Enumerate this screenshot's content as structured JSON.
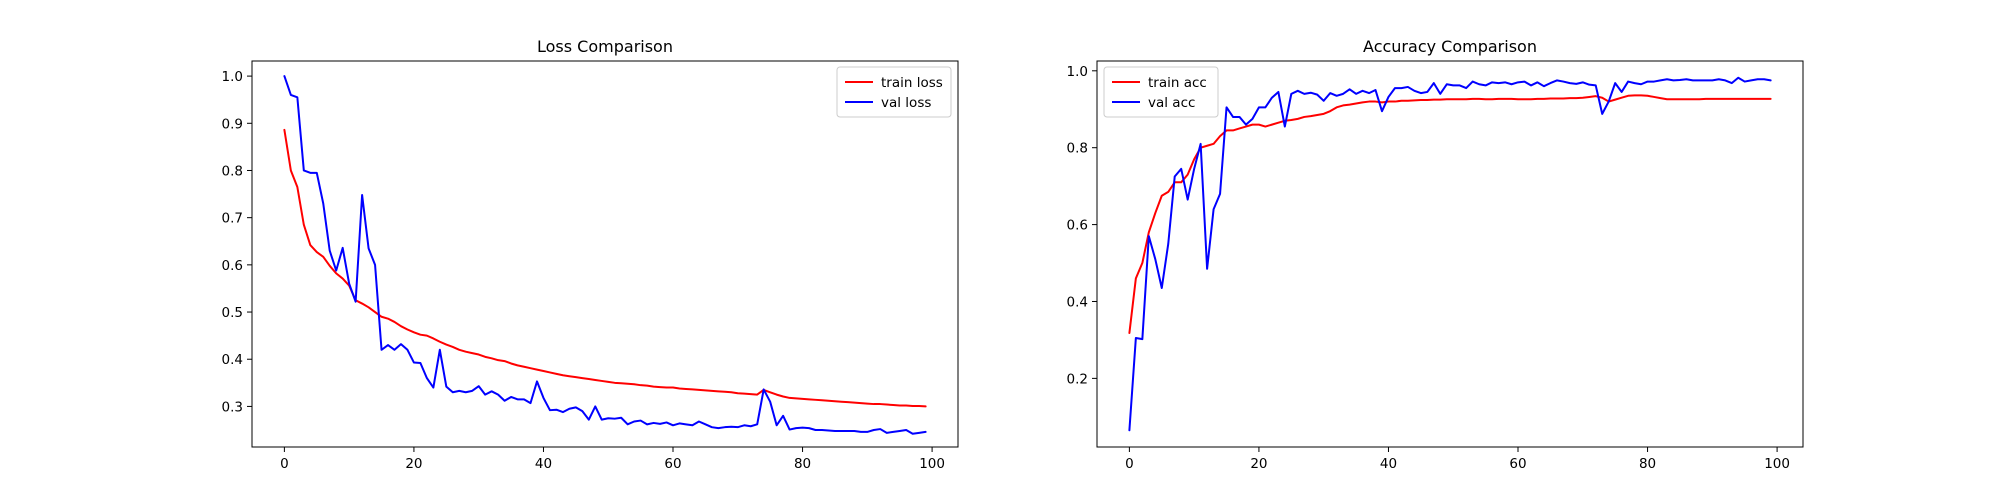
{
  "chart_data": [
    {
      "type": "line",
      "title": "Loss Comparison",
      "xlabel": "",
      "ylabel": "",
      "xlim": [
        -5,
        104
      ],
      "ylim": [
        0.214,
        1.032
      ],
      "xticks": [
        0,
        20,
        40,
        60,
        80,
        100
      ],
      "yticks": [
        0.3,
        0.4,
        0.5,
        0.6,
        0.7,
        0.8,
        0.9,
        1.0
      ],
      "ytick_labels": [
        "0.3",
        "0.4",
        "0.5",
        "0.6",
        "0.7",
        "0.8",
        "0.9",
        "1.0"
      ],
      "legend_position": "upper right",
      "grid": false,
      "x": [
        0,
        1,
        2,
        3,
        4,
        5,
        6,
        7,
        8,
        9,
        10,
        11,
        12,
        13,
        14,
        15,
        16,
        17,
        18,
        19,
        20,
        21,
        22,
        23,
        24,
        25,
        26,
        27,
        28,
        29,
        30,
        31,
        32,
        33,
        34,
        35,
        36,
        37,
        38,
        39,
        40,
        41,
        42,
        43,
        44,
        45,
        46,
        47,
        48,
        49,
        50,
        51,
        52,
        53,
        54,
        55,
        56,
        57,
        58,
        59,
        60,
        61,
        62,
        63,
        64,
        65,
        66,
        67,
        68,
        69,
        70,
        71,
        72,
        73,
        74,
        75,
        76,
        77,
        78,
        79,
        80,
        81,
        82,
        83,
        84,
        85,
        86,
        87,
        88,
        89,
        90,
        91,
        92,
        93,
        94,
        95,
        96,
        97,
        98,
        99
      ],
      "series": [
        {
          "name": "train loss",
          "color": "#ff0000",
          "values": [
            0.886,
            0.8,
            0.765,
            0.685,
            0.642,
            0.627,
            0.617,
            0.598,
            0.582,
            0.571,
            0.556,
            0.525,
            0.518,
            0.51,
            0.5,
            0.49,
            0.486,
            0.479,
            0.47,
            0.463,
            0.457,
            0.452,
            0.45,
            0.444,
            0.437,
            0.431,
            0.426,
            0.42,
            0.416,
            0.413,
            0.41,
            0.405,
            0.402,
            0.398,
            0.396,
            0.391,
            0.387,
            0.384,
            0.381,
            0.378,
            0.375,
            0.372,
            0.369,
            0.366,
            0.364,
            0.362,
            0.36,
            0.358,
            0.356,
            0.354,
            0.352,
            0.35,
            0.349,
            0.348,
            0.347,
            0.345,
            0.344,
            0.342,
            0.341,
            0.34,
            0.34,
            0.338,
            0.337,
            0.336,
            0.335,
            0.334,
            0.333,
            0.332,
            0.331,
            0.33,
            0.328,
            0.327,
            0.326,
            0.325,
            0.335,
            0.33,
            0.325,
            0.321,
            0.318,
            0.317,
            0.316,
            0.315,
            0.314,
            0.313,
            0.312,
            0.311,
            0.31,
            0.309,
            0.308,
            0.307,
            0.306,
            0.305,
            0.305,
            0.304,
            0.303,
            0.302,
            0.302,
            0.301,
            0.301,
            0.3
          ]
        },
        {
          "name": "val loss",
          "color": "#0000ff",
          "values": [
            1.0,
            0.96,
            0.955,
            0.8,
            0.795,
            0.795,
            0.73,
            0.63,
            0.588,
            0.636,
            0.56,
            0.522,
            0.748,
            0.635,
            0.6,
            0.42,
            0.43,
            0.42,
            0.432,
            0.42,
            0.393,
            0.392,
            0.36,
            0.34,
            0.42,
            0.342,
            0.33,
            0.333,
            0.33,
            0.333,
            0.343,
            0.325,
            0.332,
            0.325,
            0.312,
            0.32,
            0.315,
            0.315,
            0.307,
            0.353,
            0.318,
            0.292,
            0.293,
            0.288,
            0.295,
            0.298,
            0.29,
            0.272,
            0.3,
            0.272,
            0.275,
            0.274,
            0.276,
            0.262,
            0.268,
            0.27,
            0.262,
            0.265,
            0.263,
            0.266,
            0.26,
            0.264,
            0.262,
            0.26,
            0.268,
            0.262,
            0.256,
            0.254,
            0.256,
            0.257,
            0.256,
            0.26,
            0.258,
            0.262,
            0.336,
            0.31,
            0.26,
            0.28,
            0.251,
            0.254,
            0.255,
            0.254,
            0.25,
            0.25,
            0.249,
            0.248,
            0.248,
            0.248,
            0.248,
            0.246,
            0.246,
            0.25,
            0.252,
            0.244,
            0.246,
            0.248,
            0.25,
            0.242,
            0.244,
            0.246
          ]
        }
      ]
    },
    {
      "type": "line",
      "title": "Accuracy Comparison",
      "xlabel": "",
      "ylabel": "",
      "xlim": [
        -5,
        104
      ],
      "ylim": [
        0.0215,
        1.0255
      ],
      "xticks": [
        0,
        20,
        40,
        60,
        80,
        100
      ],
      "yticks": [
        0.2,
        0.4,
        0.6,
        0.8,
        1.0
      ],
      "ytick_labels": [
        "0.2",
        "0.4",
        "0.6",
        "0.8",
        "1.0"
      ],
      "legend_position": "upper left",
      "grid": false,
      "x": [
        0,
        1,
        2,
        3,
        4,
        5,
        6,
        7,
        8,
        9,
        10,
        11,
        12,
        13,
        14,
        15,
        16,
        17,
        18,
        19,
        20,
        21,
        22,
        23,
        24,
        25,
        26,
        27,
        28,
        29,
        30,
        31,
        32,
        33,
        34,
        35,
        36,
        37,
        38,
        39,
        40,
        41,
        42,
        43,
        44,
        45,
        46,
        47,
        48,
        49,
        50,
        51,
        52,
        53,
        54,
        55,
        56,
        57,
        58,
        59,
        60,
        61,
        62,
        63,
        64,
        65,
        66,
        67,
        68,
        69,
        70,
        71,
        72,
        73,
        74,
        75,
        76,
        77,
        78,
        79,
        80,
        81,
        82,
        83,
        84,
        85,
        86,
        87,
        88,
        89,
        90,
        91,
        92,
        93,
        94,
        95,
        96,
        97,
        98,
        99
      ],
      "series": [
        {
          "name": "train acc",
          "color": "#ff0000",
          "values": [
            0.318,
            0.46,
            0.5,
            0.58,
            0.63,
            0.675,
            0.685,
            0.71,
            0.71,
            0.73,
            0.77,
            0.8,
            0.805,
            0.81,
            0.83,
            0.845,
            0.845,
            0.85,
            0.855,
            0.86,
            0.86,
            0.855,
            0.86,
            0.865,
            0.87,
            0.872,
            0.875,
            0.88,
            0.882,
            0.885,
            0.888,
            0.895,
            0.905,
            0.91,
            0.912,
            0.915,
            0.918,
            0.92,
            0.92,
            0.918,
            0.92,
            0.92,
            0.922,
            0.922,
            0.923,
            0.924,
            0.924,
            0.925,
            0.925,
            0.926,
            0.926,
            0.926,
            0.926,
            0.927,
            0.927,
            0.926,
            0.926,
            0.927,
            0.927,
            0.927,
            0.926,
            0.926,
            0.926,
            0.927,
            0.927,
            0.928,
            0.928,
            0.928,
            0.929,
            0.929,
            0.93,
            0.932,
            0.934,
            0.93,
            0.92,
            0.925,
            0.93,
            0.935,
            0.936,
            0.936,
            0.935,
            0.932,
            0.929,
            0.926,
            0.926,
            0.926,
            0.926,
            0.926,
            0.926,
            0.927,
            0.927,
            0.927,
            0.927,
            0.927,
            0.927,
            0.927,
            0.927,
            0.927,
            0.927,
            0.927
          ]
        },
        {
          "name": "val acc",
          "color": "#0000ff",
          "values": [
            0.065,
            0.305,
            0.302,
            0.57,
            0.51,
            0.435,
            0.55,
            0.725,
            0.745,
            0.665,
            0.745,
            0.81,
            0.485,
            0.64,
            0.68,
            0.905,
            0.88,
            0.88,
            0.86,
            0.875,
            0.905,
            0.905,
            0.93,
            0.945,
            0.855,
            0.94,
            0.948,
            0.94,
            0.943,
            0.938,
            0.922,
            0.942,
            0.935,
            0.94,
            0.952,
            0.94,
            0.948,
            0.942,
            0.95,
            0.895,
            0.932,
            0.955,
            0.955,
            0.958,
            0.948,
            0.942,
            0.945,
            0.968,
            0.94,
            0.965,
            0.962,
            0.962,
            0.955,
            0.972,
            0.965,
            0.962,
            0.97,
            0.968,
            0.97,
            0.965,
            0.97,
            0.972,
            0.962,
            0.97,
            0.96,
            0.968,
            0.975,
            0.972,
            0.968,
            0.966,
            0.97,
            0.964,
            0.962,
            0.888,
            0.92,
            0.968,
            0.945,
            0.972,
            0.968,
            0.965,
            0.972,
            0.972,
            0.975,
            0.978,
            0.975,
            0.976,
            0.978,
            0.975,
            0.975,
            0.975,
            0.975,
            0.978,
            0.975,
            0.968,
            0.982,
            0.972,
            0.975,
            0.978,
            0.978,
            0.975
          ]
        }
      ]
    }
  ]
}
